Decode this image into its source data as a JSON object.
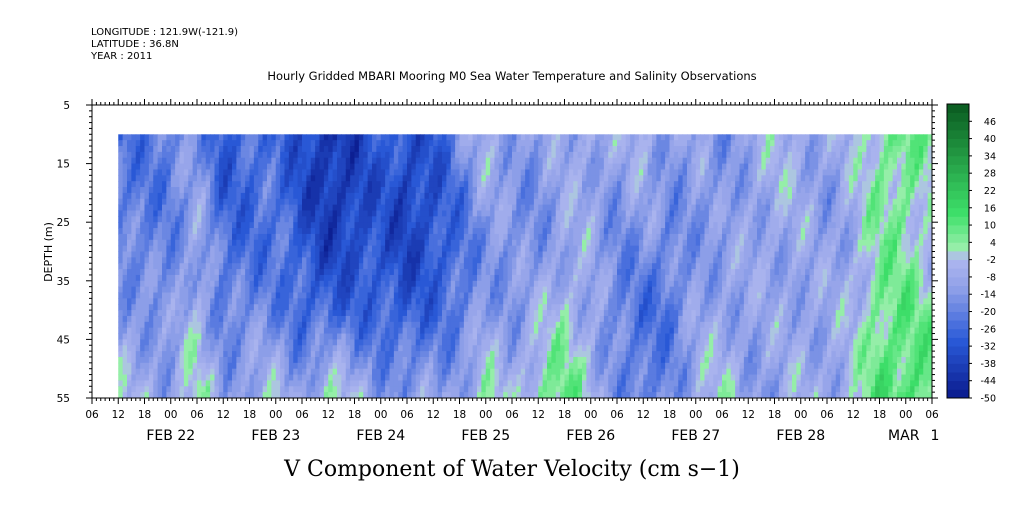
{
  "header": {
    "longitude": "LONGITUDE : 121.9W(-121.9)",
    "latitude": "LATITUDE : 36.8N",
    "year": "YEAR : 2011",
    "title": "Hourly Gridded MBARI Mooring M0 Sea Water Temperature and Salinity Observations"
  },
  "chart_data": {
    "type": "heatmap",
    "title": "Hourly Gridded MBARI Mooring M0 Sea Water Temperature and Salinity Observations",
    "xlabel": "V Component of Water Velocity (cm s−1)",
    "ylabel": "DEPTH (m)",
    "y_axis": {
      "range": [
        5,
        55
      ],
      "inverted": true,
      "ticks": [
        "5",
        "15",
        "25",
        "35",
        "45",
        "55"
      ]
    },
    "x_axis": {
      "start": "2011-02-21 06:00",
      "end": "2011-03-01 06:00",
      "hour_ticks": [
        "06",
        "12",
        "18",
        "00",
        "06",
        "12",
        "18",
        "00",
        "06",
        "12",
        "18",
        "00",
        "06",
        "12",
        "18",
        "00",
        "06",
        "12",
        "18",
        "00",
        "06",
        "12",
        "18",
        "00",
        "06",
        "12",
        "18",
        "00",
        "06",
        "12",
        "18",
        "00",
        "06"
      ],
      "day_labels": [
        {
          "label": "FEB 22",
          "date": "2011-02-22"
        },
        {
          "label": "FEB 23",
          "date": "2011-02-23"
        },
        {
          "label": "FEB 24",
          "date": "2011-02-24"
        },
        {
          "label": "FEB 25",
          "date": "2011-02-25"
        },
        {
          "label": "FEB 26",
          "date": "2011-02-26"
        },
        {
          "label": "FEB 27",
          "date": "2011-02-27"
        },
        {
          "label": "FEB 28",
          "date": "2011-02-28"
        },
        {
          "label": "MAR",
          "date": "2011-03-01"
        },
        {
          "label": "1",
          "date": "2011-03-01"
        }
      ]
    },
    "data_extent": {
      "time_start": "2011-02-21 12:00",
      "time_end": "2011-03-01 06:00",
      "depth_min": 10,
      "depth_max": 55
    },
    "colorbar": {
      "labels": [
        "46",
        "40",
        "34",
        "28",
        "22",
        "16",
        "10",
        "4",
        "-2",
        "-8",
        "-14",
        "-20",
        "-26",
        "-32",
        "-38",
        "-44",
        "-50"
      ],
      "range": [
        -50,
        52
      ],
      "level_step": 3
    },
    "grid": false
  },
  "colors": {
    "strong_negative": "#0a1a8c",
    "negative": "#2a5ad8",
    "weak_negative": "#8fa0e8",
    "near_zero_negative": "#b0b8f0",
    "near_zero_positive": "#a0f0b0",
    "positive": "#3ee06a",
    "strong_positive": "#0a5a20"
  },
  "field": {
    "time_knots": [
      {
        "t": "2011-02-21 12:00",
        "v": [
          -24,
          -22,
          -18,
          -12,
          -4
        ]
      },
      {
        "t": "2011-02-21 18:00",
        "v": [
          -22,
          -22,
          -20,
          -14,
          -6
        ]
      },
      {
        "t": "2011-02-22 00:00",
        "v": [
          -20,
          -20,
          -18,
          -16,
          -10
        ]
      },
      {
        "t": "2011-02-22 06:00",
        "v": [
          -14,
          -12,
          -8,
          -4,
          2
        ]
      },
      {
        "t": "2011-02-22 12:00",
        "v": [
          -30,
          -28,
          -24,
          -20,
          -12
        ]
      },
      {
        "t": "2011-02-22 18:00",
        "v": [
          -26,
          -26,
          -24,
          -18,
          -8
        ]
      },
      {
        "t": "2011-02-23 00:00",
        "v": [
          -24,
          -24,
          -22,
          -18,
          -4
        ]
      },
      {
        "t": "2011-02-23 06:00",
        "v": [
          -32,
          -34,
          -30,
          -26,
          -12
        ]
      },
      {
        "t": "2011-02-23 12:00",
        "v": [
          -44,
          -40,
          -36,
          -28,
          4
        ]
      },
      {
        "t": "2011-02-23 18:00",
        "v": [
          -36,
          -40,
          -34,
          -26,
          -6
        ]
      },
      {
        "t": "2011-02-24 00:00",
        "v": [
          -26,
          -30,
          -32,
          -28,
          -12
        ]
      },
      {
        "t": "2011-02-24 06:00",
        "v": [
          -34,
          -38,
          -36,
          -30,
          -14
        ]
      },
      {
        "t": "2011-02-24 12:00",
        "v": [
          -30,
          -34,
          -32,
          -26,
          -10
        ]
      },
      {
        "t": "2011-02-24 18:00",
        "v": [
          -16,
          -22,
          -26,
          -22,
          -10
        ]
      },
      {
        "t": "2011-02-25 00:00",
        "v": [
          -6,
          -10,
          -14,
          -12,
          2
        ]
      },
      {
        "t": "2011-02-25 06:00",
        "v": [
          -10,
          -14,
          -16,
          -14,
          -6
        ]
      },
      {
        "t": "2011-02-25 12:00",
        "v": [
          -14,
          -16,
          -14,
          -8,
          4
        ]
      },
      {
        "t": "2011-02-25 18:00",
        "v": [
          -8,
          -10,
          -8,
          -2,
          10
        ]
      },
      {
        "t": "2011-02-26 00:00",
        "v": [
          -6,
          -8,
          -10,
          -8,
          -2
        ]
      },
      {
        "t": "2011-02-26 06:00",
        "v": [
          -10,
          -14,
          -18,
          -20,
          -16
        ]
      },
      {
        "t": "2011-02-26 12:00",
        "v": [
          -4,
          -10,
          -16,
          -24,
          -22
        ]
      },
      {
        "t": "2011-02-26 18:00",
        "v": [
          -12,
          -16,
          -20,
          -22,
          -18
        ]
      },
      {
        "t": "2011-02-27 00:00",
        "v": [
          -10,
          -12,
          -14,
          -12,
          -6
        ]
      },
      {
        "t": "2011-02-27 06:00",
        "v": [
          -16,
          -16,
          -12,
          -8,
          -2
        ]
      },
      {
        "t": "2011-02-27 12:00",
        "v": [
          -8,
          -10,
          -10,
          -12,
          -10
        ]
      },
      {
        "t": "2011-02-27 18:00",
        "v": [
          -4,
          -6,
          -8,
          -10,
          -12
        ]
      },
      {
        "t": "2011-02-28 00:00",
        "v": [
          -6,
          -8,
          -10,
          -8,
          -6
        ]
      },
      {
        "t": "2011-02-28 06:00",
        "v": [
          -10,
          -12,
          -12,
          -10,
          -8
        ]
      },
      {
        "t": "2011-02-28 12:00",
        "v": [
          -6,
          -6,
          -6,
          -6,
          -4
        ]
      },
      {
        "t": "2011-02-28 18:00",
        "v": [
          6,
          4,
          4,
          8,
          12
        ]
      },
      {
        "t": "2011-03-01 00:00",
        "v": [
          8,
          6,
          4,
          8,
          14
        ]
      },
      {
        "t": "2011-03-01 06:00",
        "v": [
          2,
          -2,
          -4,
          4,
          10
        ]
      }
    ],
    "depth_knots": [
      10,
      20,
      30,
      40,
      55
    ]
  }
}
